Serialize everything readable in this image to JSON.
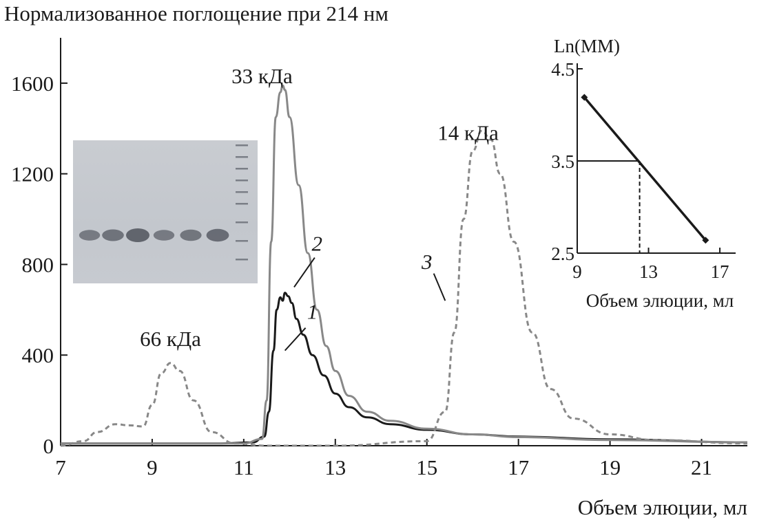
{
  "chart_data": [
    {
      "type": "line",
      "ylabel": "Нормализованное поглощение при 214 нм",
      "xlabel": "Объем элюции, мл",
      "xlim": [
        7,
        22
      ],
      "ylim": [
        0,
        1800
      ],
      "xticks": [
        7,
        9,
        11,
        13,
        15,
        17,
        19,
        21
      ],
      "yticks": [
        0,
        400,
        800,
        1200,
        1600
      ],
      "grid": false,
      "series": [
        {
          "name": "1",
          "color": "#1a1a1a",
          "style": "solid",
          "x": [
            7,
            10.5,
            11.2,
            11.45,
            11.55,
            11.65,
            11.72,
            11.8,
            11.85,
            11.9,
            11.97,
            12.05,
            12.15,
            12.3,
            12.5,
            12.75,
            13.0,
            13.3,
            13.7,
            14.2,
            15.0,
            16.0,
            17.0,
            19.0,
            22
          ],
          "y": [
            10,
            10,
            15,
            40,
            150,
            420,
            600,
            655,
            640,
            675,
            660,
            630,
            560,
            490,
            400,
            310,
            230,
            170,
            125,
            95,
            70,
            50,
            40,
            28,
            15
          ]
        },
        {
          "name": "2",
          "color": "#888888",
          "style": "solid",
          "x": [
            7,
            11.0,
            11.4,
            11.5,
            11.6,
            11.7,
            11.8,
            11.85,
            11.9,
            12.0,
            12.2,
            12.4,
            12.6,
            12.8,
            13.0,
            13.3,
            13.7,
            14.2,
            15.0,
            16.0,
            17.0,
            19.0,
            22
          ],
          "y": [
            10,
            10,
            30,
            200,
            900,
            1450,
            1560,
            1590,
            1570,
            1450,
            1150,
            850,
            600,
            440,
            330,
            220,
            150,
            110,
            75,
            50,
            38,
            25,
            15
          ]
        },
        {
          "name": "3",
          "color": "#888888",
          "style": "dashed",
          "x": [
            7,
            7.5,
            7.8,
            8.2,
            8.5,
            8.8,
            9.0,
            9.2,
            9.4,
            9.6,
            9.9,
            10.3,
            10.8,
            11.5,
            13.0,
            15.0,
            15.4,
            15.6,
            15.8,
            16.0,
            16.2,
            16.4,
            16.6,
            16.9,
            17.3,
            17.7,
            18.2,
            19.0,
            20.0,
            22
          ],
          "y": [
            0,
            20,
            60,
            95,
            90,
            85,
            180,
            320,
            365,
            330,
            200,
            60,
            10,
            0,
            0,
            20,
            150,
            500,
            1000,
            1300,
            1390,
            1350,
            1200,
            900,
            500,
            250,
            120,
            50,
            25,
            10
          ]
        }
      ],
      "annotations": [
        {
          "text": "66 кДа",
          "x": 9.4,
          "y": 440
        },
        {
          "text": "33 кДа",
          "x": 11.4,
          "y": 1600
        },
        {
          "text": "14 кДа",
          "x": 15.9,
          "y": 1350
        },
        {
          "text": "2",
          "x": 12.6,
          "y": 860
        },
        {
          "text": "1",
          "x": 12.5,
          "y": 560
        },
        {
          "text": "3",
          "x": 15.0,
          "y": 780
        }
      ]
    },
    {
      "type": "line",
      "ylabel": "Ln(MM)",
      "xlabel": "Объем элюции, мл",
      "xlim": [
        9,
        17.5
      ],
      "ylim": [
        2.5,
        4.5
      ],
      "xticks": [
        9,
        13,
        17
      ],
      "yticks": [
        2.5,
        3.5,
        4.5
      ],
      "series": [
        {
          "x": [
            9.4,
            16.2
          ],
          "y": [
            4.19,
            2.64
          ]
        }
      ],
      "reference": {
        "x": 12.5,
        "y": 3.5
      }
    }
  ],
  "gel": {
    "lane_count": 6,
    "band_intensity": [
      0.55,
      0.7,
      1.0,
      0.55,
      0.65,
      0.85
    ]
  }
}
